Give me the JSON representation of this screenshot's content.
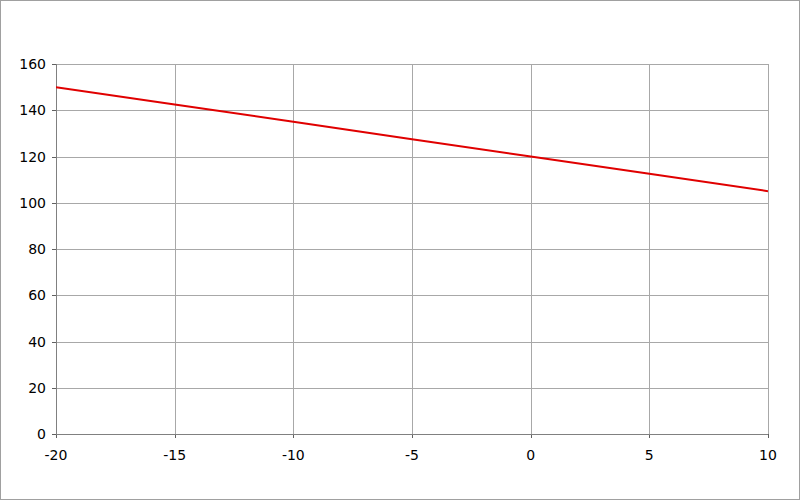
{
  "chart_data": {
    "type": "line",
    "x": [
      -20,
      -15,
      -10,
      -5,
      0,
      5,
      10
    ],
    "values": [
      150,
      142.5,
      135,
      127.5,
      120,
      112.5,
      105
    ],
    "color": "#e00000",
    "xlim": [
      -20,
      10
    ],
    "xticks": [
      -20,
      -15,
      -10,
      -5,
      0,
      5,
      10
    ],
    "ylim": [
      0,
      160
    ],
    "yticks": [
      0,
      20,
      40,
      60,
      80,
      100,
      120,
      140,
      160
    ],
    "grid": true
  }
}
